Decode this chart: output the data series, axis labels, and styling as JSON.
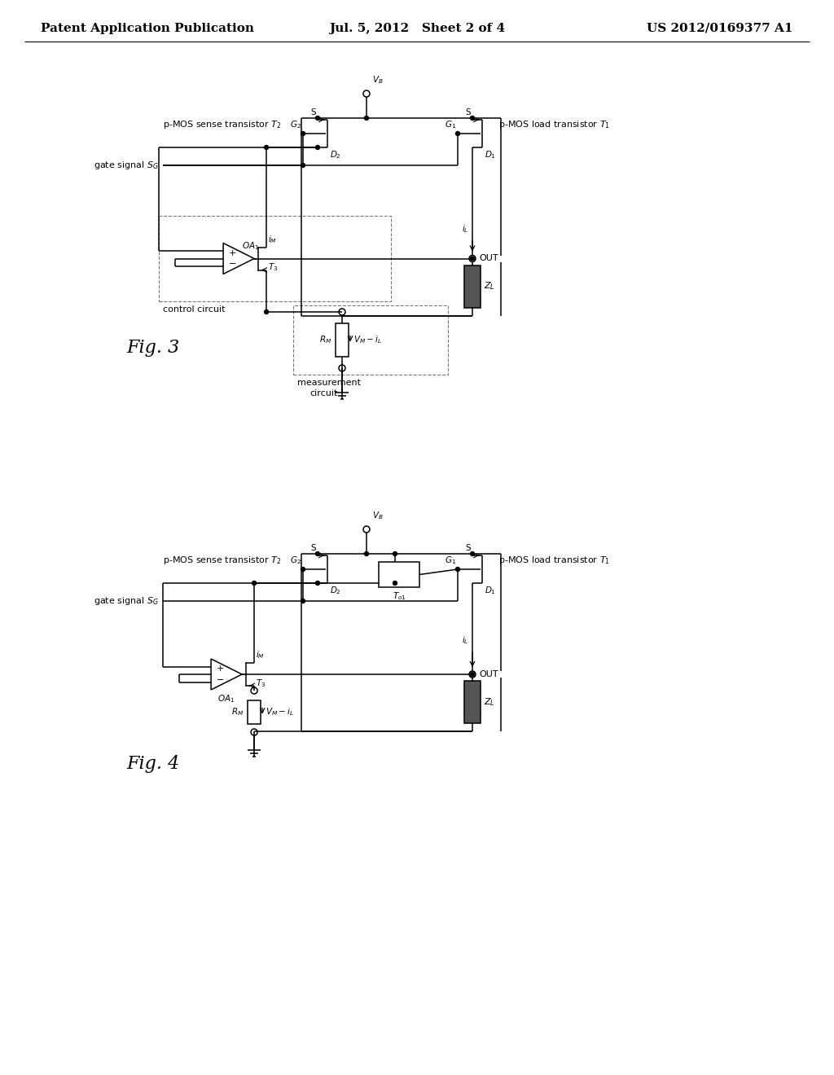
{
  "page_title_left": "Patent Application Publication",
  "page_title_mid": "Jul. 5, 2012   Sheet 2 of 4",
  "page_title_right": "US 2012/0169377 A1",
  "fig3_label": "Fig. 3",
  "fig4_label": "Fig. 4",
  "background": "#ffffff",
  "line_color": "#000000",
  "dashed_color": "#666666",
  "text_color": "#000000",
  "title_fontsize": 11,
  "label_fontsize": 8.0,
  "small_fontsize": 7.5
}
